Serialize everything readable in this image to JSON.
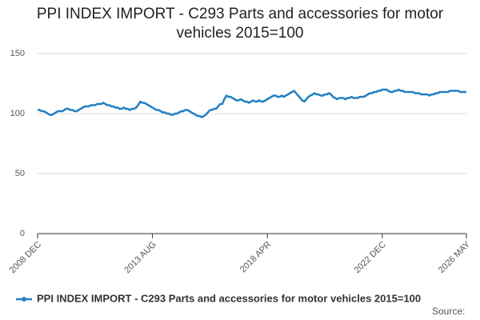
{
  "chart_data": {
    "type": "line",
    "title": "PPI INDEX IMPORT - C293 Parts and accessories for motor vehicles 2015=100",
    "source": "Source:",
    "categories": [
      "2008 DEC",
      null,
      null,
      null,
      null,
      null,
      null,
      null,
      null,
      null,
      null,
      null,
      null,
      null,
      null,
      null,
      null,
      null,
      null,
      null,
      null,
      null,
      null,
      null,
      null,
      null,
      null,
      null,
      null,
      null,
      null,
      null,
      null,
      null,
      null,
      null,
      null,
      null,
      null,
      null,
      null,
      null,
      null,
      null,
      null,
      null,
      null,
      null,
      null,
      null,
      null,
      null,
      null,
      null,
      null,
      null,
      "2013 AUG",
      null,
      null,
      null,
      null,
      null,
      null,
      null,
      null,
      null,
      null,
      null,
      null,
      null,
      null,
      null,
      null,
      null,
      null,
      null,
      null,
      null,
      null,
      null,
      null,
      null,
      null,
      null,
      null,
      null,
      null,
      null,
      null,
      null,
      null,
      null,
      null,
      null,
      null,
      null,
      null,
      null,
      null,
      null,
      null,
      null,
      null,
      null,
      null,
      null,
      null,
      null,
      null,
      null,
      null,
      null,
      "2018 APR",
      null,
      null,
      null,
      null,
      null,
      null,
      null,
      null,
      null,
      null,
      null,
      null,
      null,
      null,
      null,
      null,
      null,
      null,
      null,
      null,
      null,
      null,
      null,
      null,
      null,
      null,
      null,
      null,
      null,
      null,
      null,
      null,
      null,
      null,
      null,
      null,
      null,
      null,
      null,
      null,
      null,
      null,
      null,
      null,
      null,
      null,
      null,
      null,
      null,
      null,
      null,
      null,
      null,
      null,
      null,
      "2022 DEC",
      null,
      null,
      null,
      null,
      null,
      null,
      null,
      null,
      null,
      null,
      null,
      null,
      null,
      null,
      null,
      null,
      null,
      null,
      null,
      null,
      null,
      null,
      null,
      null,
      null,
      null,
      null,
      null,
      null,
      null,
      null,
      null,
      null,
      null,
      null,
      null,
      null,
      null,
      null,
      null,
      "2026 MAY"
    ],
    "series": [
      {
        "name": "PPI INDEX IMPORT - C293 Parts and accessories for motor vehicles 2015=100",
        "color": "#2380c2",
        "values": [
          103,
          103,
          102,
          102,
          101,
          100,
          99,
          99,
          100,
          101,
          102,
          102,
          102,
          103,
          104,
          104,
          103,
          103,
          102,
          102,
          103,
          104,
          105,
          106,
          106,
          106,
          107,
          107,
          107,
          108,
          108,
          108,
          109,
          108,
          107,
          107,
          106,
          106,
          105,
          105,
          104,
          104,
          105,
          104,
          104,
          103,
          104,
          104,
          105,
          107,
          110,
          109,
          109,
          108,
          107,
          106,
          105,
          104,
          103,
          103,
          102,
          101,
          101,
          100,
          100,
          99,
          99,
          100,
          100,
          101,
          102,
          102,
          103,
          103,
          102,
          101,
          100,
          99,
          98,
          98,
          97,
          98,
          99,
          101,
          103,
          103,
          104,
          104,
          106,
          108,
          108,
          112,
          115,
          114,
          114,
          113,
          112,
          111,
          111,
          112,
          111,
          110,
          110,
          109,
          110,
          111,
          110,
          110,
          111,
          110,
          110,
          111,
          112,
          113,
          114,
          115,
          115,
          114,
          114,
          115,
          114,
          115,
          116,
          117,
          118,
          119,
          117,
          115,
          113,
          111,
          110,
          112,
          114,
          115,
          116,
          117,
          116,
          116,
          115,
          115,
          116,
          116,
          117,
          116,
          114,
          113,
          112,
          113,
          113,
          113,
          112,
          113,
          113,
          114,
          113,
          113,
          113,
          114,
          114,
          114,
          115,
          116,
          117,
          117,
          118,
          118,
          119,
          119,
          120,
          120,
          120,
          119,
          118,
          118,
          119,
          119,
          120,
          119,
          119,
          118,
          118,
          118,
          118,
          118,
          117,
          117,
          117,
          116,
          116,
          116,
          116,
          115,
          116,
          116,
          117,
          117,
          118,
          118,
          118,
          118,
          118,
          119,
          119,
          119,
          119,
          119,
          118,
          118,
          118,
          118
        ]
      }
    ],
    "ylim": [
      0,
      150
    ],
    "yticks": [
      0,
      50,
      100,
      150
    ],
    "grid": true
  }
}
